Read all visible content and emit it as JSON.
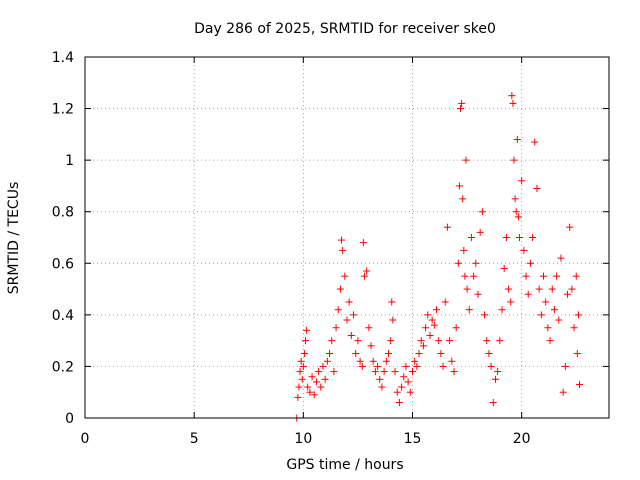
{
  "chart_data": {
    "type": "scatter",
    "title": "Day 286 of 2025, SRMTID for receiver ske0",
    "xlabel": "GPS time / hours",
    "ylabel": "SRMTID / TECUs",
    "xlim": [
      0,
      24
    ],
    "ylim": [
      0,
      1.4
    ],
    "xticks": [
      0,
      5,
      10,
      15,
      20
    ],
    "xtick_labels": [
      "0",
      "5",
      "10",
      "15",
      "20"
    ],
    "yticks": [
      0,
      0.2,
      0.4,
      0.6,
      0.8,
      1.0,
      1.2,
      1.4
    ],
    "ytick_labels": [
      "0",
      "0.2",
      "0.4",
      "0.6",
      "0.8",
      "1",
      "1.2",
      "1.4"
    ],
    "grid": true,
    "marker": "+",
    "color": "#ff0000",
    "series": [
      {
        "name": "SRMTID",
        "points": [
          [
            9.7,
            0.0
          ],
          [
            9.75,
            0.08
          ],
          [
            9.8,
            0.12
          ],
          [
            9.85,
            0.18
          ],
          [
            9.9,
            0.22
          ],
          [
            9.95,
            0.15
          ],
          [
            10.0,
            0.2
          ],
          [
            10.05,
            0.25
          ],
          [
            10.1,
            0.3
          ],
          [
            10.15,
            0.34
          ],
          [
            10.2,
            0.12
          ],
          [
            10.3,
            0.1
          ],
          [
            10.4,
            0.16
          ],
          [
            10.5,
            0.09
          ],
          [
            10.6,
            0.14
          ],
          [
            10.7,
            0.18
          ],
          [
            10.8,
            0.12
          ],
          [
            10.9,
            0.2
          ],
          [
            11.0,
            0.15
          ],
          [
            11.1,
            0.22
          ],
          [
            11.2,
            0.25
          ],
          [
            11.3,
            0.3
          ],
          [
            11.4,
            0.18
          ],
          [
            11.5,
            0.35
          ],
          [
            11.6,
            0.42
          ],
          [
            11.7,
            0.5
          ],
          [
            11.75,
            0.69
          ],
          [
            11.8,
            0.65
          ],
          [
            11.9,
            0.55
          ],
          [
            12.0,
            0.38
          ],
          [
            12.1,
            0.45
          ],
          [
            12.2,
            0.32
          ],
          [
            12.3,
            0.4
          ],
          [
            12.4,
            0.25
          ],
          [
            12.5,
            0.3
          ],
          [
            12.6,
            0.22
          ],
          [
            12.7,
            0.2
          ],
          [
            12.75,
            0.68
          ],
          [
            12.8,
            0.55
          ],
          [
            12.9,
            0.57
          ],
          [
            13.0,
            0.35
          ],
          [
            13.1,
            0.28
          ],
          [
            13.2,
            0.22
          ],
          [
            13.3,
            0.18
          ],
          [
            13.4,
            0.2
          ],
          [
            13.5,
            0.15
          ],
          [
            13.6,
            0.12
          ],
          [
            13.7,
            0.18
          ],
          [
            13.8,
            0.22
          ],
          [
            13.9,
            0.25
          ],
          [
            14.0,
            0.3
          ],
          [
            14.05,
            0.45
          ],
          [
            14.1,
            0.38
          ],
          [
            14.2,
            0.18
          ],
          [
            14.3,
            0.1
          ],
          [
            14.4,
            0.06
          ],
          [
            14.5,
            0.12
          ],
          [
            14.6,
            0.16
          ],
          [
            14.7,
            0.2
          ],
          [
            14.8,
            0.14
          ],
          [
            14.9,
            0.1
          ],
          [
            15.0,
            0.18
          ],
          [
            15.1,
            0.22
          ],
          [
            15.2,
            0.2
          ],
          [
            15.3,
            0.25
          ],
          [
            15.4,
            0.3
          ],
          [
            15.5,
            0.28
          ],
          [
            15.6,
            0.35
          ],
          [
            15.7,
            0.4
          ],
          [
            15.8,
            0.32
          ],
          [
            15.9,
            0.38
          ],
          [
            16.0,
            0.36
          ],
          [
            16.1,
            0.42
          ],
          [
            16.2,
            0.3
          ],
          [
            16.3,
            0.25
          ],
          [
            16.4,
            0.2
          ],
          [
            16.5,
            0.45
          ],
          [
            16.6,
            0.74
          ],
          [
            16.7,
            0.3
          ],
          [
            16.8,
            0.22
          ],
          [
            16.9,
            0.18
          ],
          [
            17.0,
            0.35
          ],
          [
            17.1,
            0.6
          ],
          [
            17.15,
            0.9
          ],
          [
            17.2,
            1.2
          ],
          [
            17.25,
            1.22
          ],
          [
            17.3,
            0.85
          ],
          [
            17.35,
            0.65
          ],
          [
            17.4,
            0.55
          ],
          [
            17.45,
            1.0
          ],
          [
            17.5,
            0.5
          ],
          [
            17.6,
            0.42
          ],
          [
            17.7,
            0.7
          ],
          [
            17.8,
            0.55
          ],
          [
            17.9,
            0.6
          ],
          [
            18.0,
            0.48
          ],
          [
            18.1,
            0.72
          ],
          [
            18.2,
            0.8
          ],
          [
            18.3,
            0.4
          ],
          [
            18.4,
            0.3
          ],
          [
            18.5,
            0.25
          ],
          [
            18.6,
            0.2
          ],
          [
            18.7,
            0.06
          ],
          [
            18.8,
            0.15
          ],
          [
            18.9,
            0.18
          ],
          [
            19.0,
            0.3
          ],
          [
            19.1,
            0.42
          ],
          [
            19.2,
            0.58
          ],
          [
            19.3,
            0.7
          ],
          [
            19.4,
            0.5
          ],
          [
            19.5,
            0.45
          ],
          [
            19.55,
            1.25
          ],
          [
            19.6,
            1.22
          ],
          [
            19.65,
            1.0
          ],
          [
            19.7,
            0.85
          ],
          [
            19.75,
            0.8
          ],
          [
            19.8,
            1.08
          ],
          [
            19.85,
            0.78
          ],
          [
            19.9,
            0.7
          ],
          [
            20.0,
            0.92
          ],
          [
            20.1,
            0.65
          ],
          [
            20.2,
            0.55
          ],
          [
            20.3,
            0.48
          ],
          [
            20.4,
            0.6
          ],
          [
            20.5,
            0.7
          ],
          [
            20.6,
            1.07
          ],
          [
            20.7,
            0.89
          ],
          [
            20.8,
            0.5
          ],
          [
            20.9,
            0.4
          ],
          [
            21.0,
            0.55
          ],
          [
            21.1,
            0.45
          ],
          [
            21.2,
            0.35
          ],
          [
            21.3,
            0.3
          ],
          [
            21.4,
            0.5
          ],
          [
            21.5,
            0.42
          ],
          [
            21.6,
            0.55
          ],
          [
            21.7,
            0.38
          ],
          [
            21.8,
            0.62
          ],
          [
            21.9,
            0.1
          ],
          [
            22.0,
            0.2
          ],
          [
            22.1,
            0.48
          ],
          [
            22.2,
            0.74
          ],
          [
            22.3,
            0.5
          ],
          [
            22.4,
            0.35
          ],
          [
            22.5,
            0.55
          ],
          [
            22.55,
            0.25
          ],
          [
            22.6,
            0.4
          ],
          [
            22.65,
            0.13
          ]
        ]
      }
    ]
  }
}
